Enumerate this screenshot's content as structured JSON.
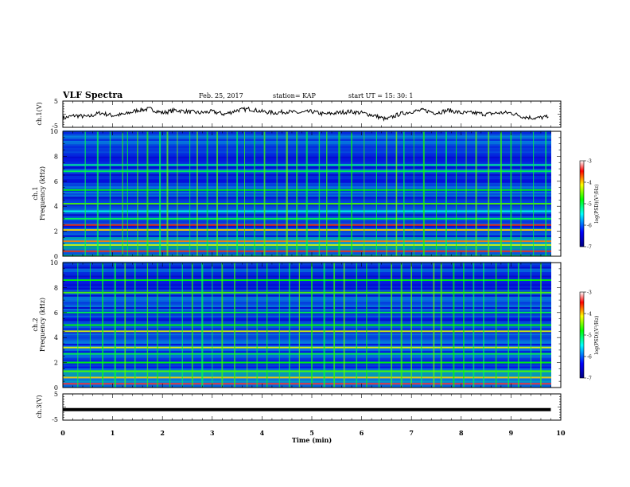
{
  "header": {
    "title": "VLF Spectra",
    "date": "Feb. 25, 2017",
    "station": "station= KAP",
    "start": "start  UT =   15: 30: 1"
  },
  "colors": {
    "axes": "#000000",
    "spectrogram_background": "#0a1fb8",
    "colormap": [
      "#000080",
      "#0000ff",
      "#00ffff",
      "#00ff00",
      "#ffff00",
      "#ff0000",
      "#ffffff"
    ]
  },
  "chart_data": [
    {
      "name_label": "ch.1(V)",
      "type": "line",
      "ylabel": "ch.1(V)",
      "ylim": [
        -5,
        5
      ],
      "yticks": [
        "5",
        "-5"
      ],
      "x": [
        0,
        0.25,
        0.5,
        0.75,
        1,
        1.25,
        1.5,
        1.75,
        2,
        2.25,
        2.5,
        2.75,
        3,
        3.25,
        3.5,
        3.75,
        4,
        4.25,
        4.5,
        4.75,
        5,
        5.25,
        5.5,
        5.75,
        6,
        6.25,
        6.5,
        6.75,
        7,
        7.25,
        7.5,
        7.75,
        8,
        8.25,
        8.5,
        8.75,
        9,
        9.25,
        9.5,
        9.75
      ],
      "y": [
        -1.5,
        -0.5,
        -1,
        0.5,
        -0.5,
        0,
        1.5,
        2,
        0.5,
        1.5,
        1,
        0.5,
        1,
        0,
        1.5,
        2,
        1,
        0.5,
        1,
        0.5,
        1,
        0,
        0.5,
        1,
        0.5,
        -0.5,
        -2,
        0,
        1,
        1.5,
        0.5,
        1.5,
        0.5,
        0.5,
        0,
        0.5,
        0.5,
        -1,
        -1.5,
        -1
      ]
    },
    {
      "name_label": "ch.1 Frequency (kHz)",
      "type": "heatmap",
      "ylabel_line1": "ch.1",
      "ylabel_line2": "Frequency (kHz)",
      "ylim": [
        0,
        10
      ],
      "yticks": [
        "0",
        "2",
        "4",
        "6",
        "8",
        "10"
      ],
      "colorbar": {
        "label": "log(PSD)(V²/Hz)",
        "ticks": [
          "-3",
          "-4",
          "-5",
          "-6",
          "-7"
        ],
        "range": [
          -7,
          -3
        ]
      },
      "bands": [
        {
          "f": 0.4,
          "level": 0.85
        },
        {
          "f": 0.9,
          "level": 0.7
        },
        {
          "f": 1.2,
          "level": 0.8
        },
        {
          "f": 2.1,
          "level": 0.75
        },
        {
          "f": 2.5,
          "level": 0.85
        },
        {
          "f": 3.0,
          "level": 0.5
        },
        {
          "f": 3.6,
          "level": 0.4
        },
        {
          "f": 4.2,
          "level": 0.6
        },
        {
          "f": 5.3,
          "level": 0.55
        },
        {
          "f": 6.8,
          "level": 0.5
        },
        {
          "f": 7.3,
          "level": 0.45
        }
      ],
      "spikes_min": [
        0.45,
        0.7,
        0.95,
        1.2,
        1.3,
        1.5,
        1.7,
        1.95,
        2.1,
        2.3,
        2.55,
        2.7,
        2.9,
        3.1,
        3.3,
        3.5,
        3.65,
        3.85,
        4.05,
        4.3,
        4.5,
        4.7,
        4.9,
        5.15,
        5.3,
        5.55,
        5.8,
        6.05,
        6.3,
        6.5,
        6.7,
        6.85,
        7.05,
        7.25,
        7.5,
        7.7,
        7.9,
        8.1,
        8.3,
        8.55,
        8.8,
        9.0,
        9.2,
        9.45,
        9.7
      ]
    },
    {
      "name_label": "ch.2 Frequency (kHz)",
      "type": "heatmap",
      "ylabel_line1": "ch.2",
      "ylabel_line2": "Frequency (kHz)",
      "ylim": [
        0,
        10
      ],
      "yticks": [
        "0",
        "2",
        "4",
        "6",
        "8",
        "10"
      ],
      "colorbar": {
        "label": "log(PSD)(V²/Hz)",
        "ticks": [
          "-3",
          "-4",
          "-5",
          "-6",
          "-7"
        ],
        "range": [
          -7,
          -3
        ]
      },
      "bands": [
        {
          "f": 0.3,
          "level": 0.9
        },
        {
          "f": 0.8,
          "level": 0.75
        },
        {
          "f": 1.3,
          "level": 0.6
        },
        {
          "f": 2.0,
          "level": 0.55
        },
        {
          "f": 2.7,
          "level": 0.5
        },
        {
          "f": 3.2,
          "level": 0.7
        },
        {
          "f": 4.5,
          "level": 0.7
        },
        {
          "f": 5.0,
          "level": 0.55
        },
        {
          "f": 6.0,
          "level": 0.5
        },
        {
          "f": 7.6,
          "level": 0.6
        },
        {
          "f": 8.6,
          "level": 0.55
        }
      ],
      "spikes_min": [
        0.3,
        0.55,
        0.8,
        1.05,
        1.25,
        1.45,
        1.7,
        1.9,
        2.15,
        2.4,
        2.6,
        2.8,
        3.0,
        3.2,
        3.45,
        3.7,
        3.9,
        4.1,
        4.35,
        4.55,
        4.75,
        5.0,
        5.25,
        5.45,
        5.65,
        5.9,
        6.1,
        6.35,
        6.6,
        6.8,
        7.0,
        7.2,
        7.45,
        7.6,
        7.85,
        8.05,
        8.25,
        8.45,
        8.7,
        8.95,
        9.15,
        9.4,
        9.6
      ]
    },
    {
      "name_label": "ch.3(V)",
      "type": "line",
      "ylabel": "ch.3(V)",
      "ylim": [
        -5,
        5
      ],
      "yticks": [
        "5",
        "-5"
      ],
      "x": [
        0,
        9.8
      ],
      "y": [
        -1,
        -1
      ]
    }
  ],
  "xaxis": {
    "label": "Time  (min)",
    "range": [
      0,
      10
    ],
    "ticks": [
      "0",
      "1",
      "2",
      "3",
      "4",
      "5",
      "6",
      "7",
      "8",
      "9",
      "10"
    ]
  }
}
